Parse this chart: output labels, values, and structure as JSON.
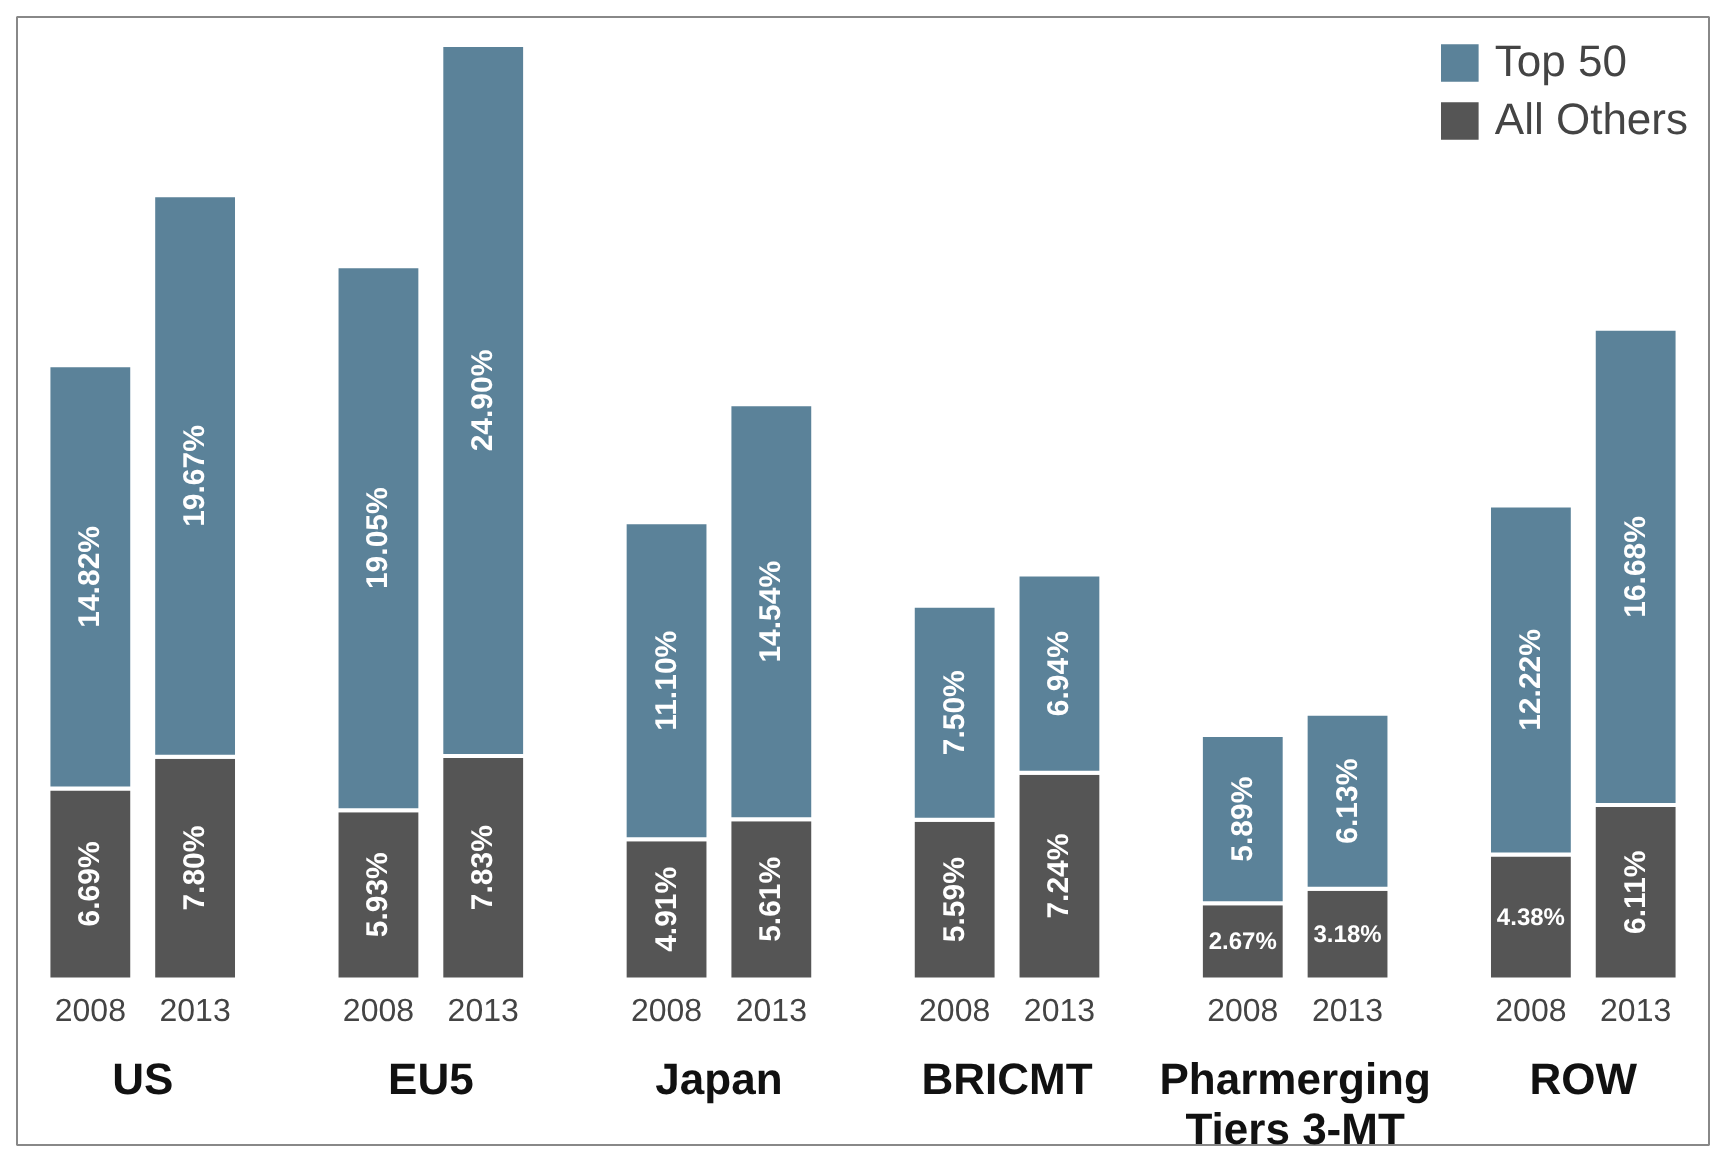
{
  "chart_data": {
    "type": "bar",
    "stacked": true,
    "categories": [
      "2008",
      "2013",
      "2008",
      "2013",
      "2008",
      "2013",
      "2008",
      "2013",
      "2008",
      "2013",
      "2008",
      "2013"
    ],
    "series": [
      {
        "name": "All Others",
        "color": "#555555",
        "values": [
          6.69,
          7.8,
          5.93,
          7.83,
          4.91,
          5.61,
          5.59,
          7.24,
          2.67,
          3.18,
          4.38,
          6.11
        ],
        "value_labels": [
          "6.69%",
          "7.80%",
          "5.93%",
          "7.83%",
          "4.91%",
          "5.61%",
          "5.59%",
          "7.24%",
          "2.67%",
          "3.18%",
          "4.38%",
          "6.11%"
        ]
      },
      {
        "name": "Top 50",
        "color": "#5b8299",
        "values": [
          14.82,
          19.67,
          19.05,
          24.9,
          11.1,
          14.54,
          7.5,
          6.94,
          5.89,
          6.13,
          12.22,
          16.68
        ],
        "value_labels": [
          "14.82%",
          "19.67%",
          "19.05%",
          "24.90%",
          "11.10%",
          "14.54%",
          "7.50%",
          "6.94%",
          "5.89%",
          "6.13%",
          "12.22%",
          "16.68%"
        ]
      }
    ],
    "annotations": [
      "US",
      "EU5",
      "Japan",
      "BRICMT",
      "Pharmerging Tiers 3-MT",
      "ROW"
    ],
    "legend": "top right",
    "grid": false,
    "tick_labels": "x"
  }
}
